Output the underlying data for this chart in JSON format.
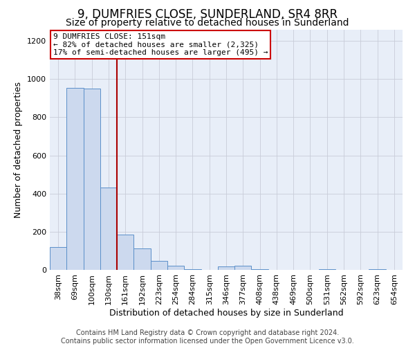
{
  "title": "9, DUMFRIES CLOSE, SUNDERLAND, SR4 8RR",
  "subtitle": "Size of property relative to detached houses in Sunderland",
  "xlabel": "Distribution of detached houses by size in Sunderland",
  "ylabel": "Number of detached properties",
  "footer_line1": "Contains HM Land Registry data © Crown copyright and database right 2024.",
  "footer_line2": "Contains public sector information licensed under the Open Government Licence v3.0.",
  "bin_labels": [
    "38sqm",
    "69sqm",
    "100sqm",
    "130sqm",
    "161sqm",
    "192sqm",
    "223sqm",
    "254sqm",
    "284sqm",
    "315sqm",
    "346sqm",
    "377sqm",
    "408sqm",
    "438sqm",
    "469sqm",
    "500sqm",
    "531sqm",
    "562sqm",
    "592sqm",
    "623sqm",
    "654sqm"
  ],
  "bar_values": [
    120,
    955,
    950,
    430,
    185,
    113,
    48,
    20,
    5,
    0,
    18,
    20,
    5,
    0,
    0,
    0,
    5,
    0,
    0,
    5,
    0
  ],
  "bar_color": "#ccd9ee",
  "bar_edge_color": "#5b8fc9",
  "annotation_line1": "9 DUMFRIES CLOSE: 151sqm",
  "annotation_line2": "← 82% of detached houses are smaller (2,325)",
  "annotation_line3": "17% of semi-detached houses are larger (495) →",
  "annotation_box_color": "#ffffff",
  "annotation_box_edge_color": "#cc0000",
  "vline_color": "#aa0000",
  "vline_x_index": 3.5,
  "ylim": [
    0,
    1260
  ],
  "yticks": [
    0,
    200,
    400,
    600,
    800,
    1000,
    1200
  ],
  "axes_bg_color": "#e8eef8",
  "background_color": "#ffffff",
  "grid_color": "#c8ccd8",
  "title_fontsize": 12,
  "subtitle_fontsize": 10,
  "axis_label_fontsize": 9,
  "tick_fontsize": 8,
  "annotation_fontsize": 8,
  "footer_fontsize": 7
}
